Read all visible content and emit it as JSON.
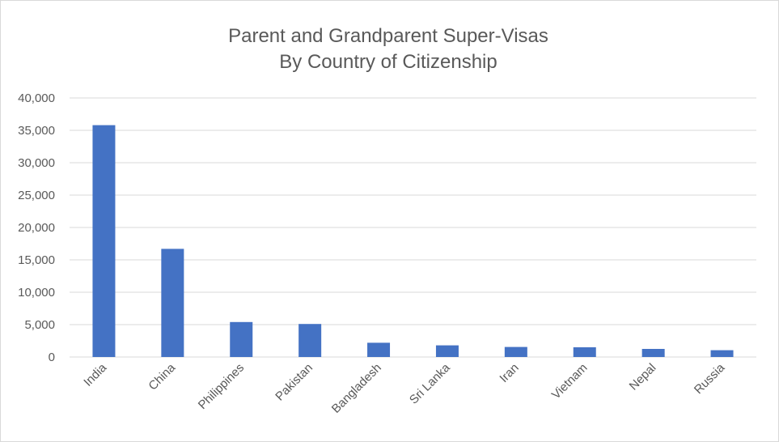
{
  "chart_data": {
    "type": "bar",
    "title": [
      "Parent and Grandparent Super-Visas",
      "By Country of Citizenship"
    ],
    "categories": [
      "India",
      "China",
      "Philippines",
      "Pakistan",
      "Bangladesh",
      "Sri Lanka",
      "Iran",
      "Vietnam",
      "Nepal",
      "Russia"
    ],
    "values": [
      35800,
      16700,
      5400,
      5100,
      2200,
      1800,
      1550,
      1500,
      1250,
      1050
    ],
    "ylim": [
      0,
      40000
    ],
    "yticks": [
      "0",
      "5,000",
      "10,000",
      "15,000",
      "20,000",
      "25,000",
      "30,000",
      "35,000",
      "40,000"
    ],
    "grid": true,
    "legend": "none",
    "colors": {
      "bar": "#4472c4",
      "grid": "#d9d9d9",
      "text": "#595959"
    }
  }
}
